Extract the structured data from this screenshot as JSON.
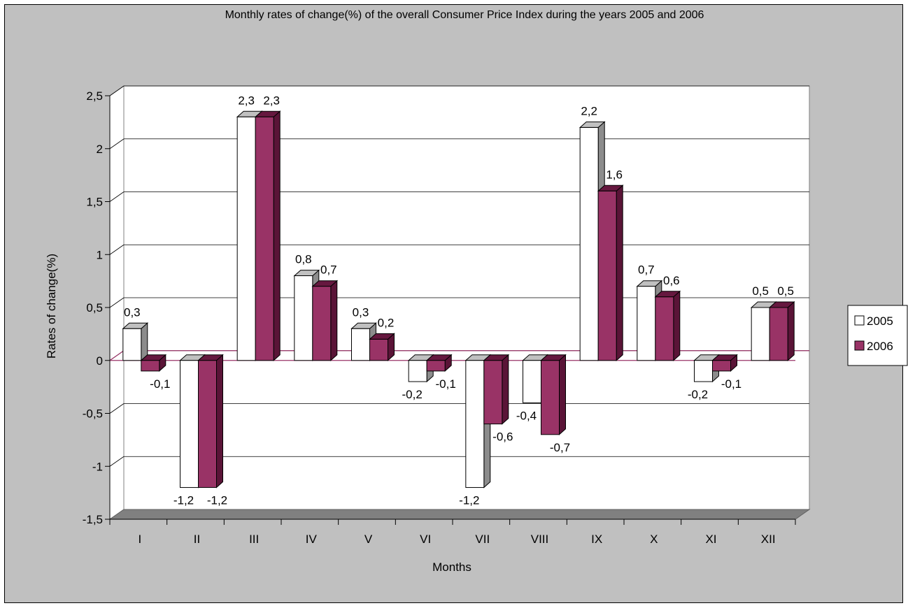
{
  "chart_data": {
    "type": "bar",
    "title": "Monthly rates of change(%) of the overall Consumer Price Index during the years 2005 and 2006",
    "xlabel": "Months",
    "ylabel": "Rates of change(%)",
    "categories": [
      "I",
      "II",
      "III",
      "IV",
      "V",
      "VI",
      "VII",
      "VIII",
      "IX",
      "X",
      "XI",
      "XII"
    ],
    "series": [
      {
        "name": "2005",
        "values": [
          0.3,
          -1.2,
          2.3,
          0.8,
          0.3,
          -0.2,
          -1.2,
          -0.4,
          2.2,
          0.7,
          -0.2,
          0.5
        ],
        "labels": [
          "0,3",
          "-1,2",
          "2,3",
          "0,8",
          "0,3",
          "-0,2",
          "-1,2",
          "-0,4",
          "2,2",
          "0,7",
          "-0,2",
          "0,5"
        ]
      },
      {
        "name": "2006",
        "values": [
          -0.1,
          -1.2,
          2.3,
          0.7,
          0.2,
          -0.1,
          -0.6,
          -0.7,
          1.6,
          0.6,
          -0.1,
          0.5
        ],
        "labels": [
          "-0,1",
          "-1,2",
          "2,3",
          "0,7",
          "0,2",
          "-0,1",
          "-0,6",
          "-0,7",
          "1,6",
          "0,6",
          "-0,1",
          "0,5"
        ]
      }
    ],
    "ylim": [
      -1.5,
      2.5
    ],
    "yticks": [
      2.5,
      2,
      1.5,
      1,
      0.5,
      0,
      -0.5,
      -1,
      -1.5
    ],
    "ytick_labels": [
      "2,5",
      "2",
      "1,5",
      "1",
      "0,5",
      "0",
      "-0,5",
      "-1",
      "-1,5"
    ],
    "grid": true,
    "legend_position": "right",
    "colors": {
      "series_2005": "#ffffff",
      "series_2006": "#993366",
      "plot_wall": "#ffffff",
      "chart_area": "#c0c0c0",
      "floor": "#808080",
      "zero_line": "#993366"
    }
  }
}
